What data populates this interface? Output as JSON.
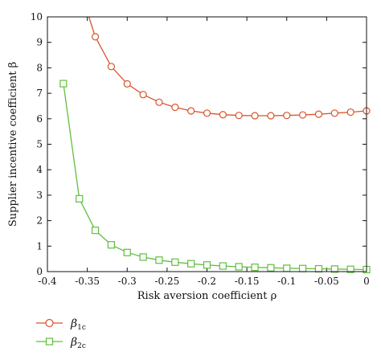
{
  "chart_data": {
    "type": "line",
    "xlabel": "Risk aversion coefficient ρ",
    "ylabel": "Supplier incentive coefficient β",
    "xlim": [
      -0.4,
      0
    ],
    "ylim": [
      0,
      10
    ],
    "x_ticks": [
      -0.4,
      -0.35,
      -0.3,
      -0.25,
      -0.2,
      -0.15,
      -0.1,
      -0.05,
      0
    ],
    "x_tick_labels": [
      "-0.4",
      "-0.35",
      "-0.3",
      "-0.25",
      "-0.2",
      "-0.15",
      "-0.1",
      "-0.05",
      "0"
    ],
    "y_ticks": [
      0,
      1,
      2,
      3,
      4,
      5,
      6,
      7,
      8,
      9,
      10
    ],
    "y_tick_labels": [
      "0",
      "1",
      "2",
      "3",
      "4",
      "5",
      "6",
      "7",
      "8",
      "9",
      "10"
    ],
    "legend_position": "below-left",
    "series": [
      {
        "name": "β1c",
        "legend_main": "β",
        "legend_sub": "1c",
        "color": "#d9532b",
        "marker": "circle",
        "x": [
          -0.34,
          -0.32,
          -0.3,
          -0.28,
          -0.26,
          -0.24,
          -0.22,
          -0.2,
          -0.18,
          -0.16,
          -0.14,
          -0.12,
          -0.1,
          -0.08,
          -0.06,
          -0.04,
          -0.02,
          0.0
        ],
        "y": [
          9.22,
          8.05,
          7.37,
          6.95,
          6.65,
          6.45,
          6.31,
          6.22,
          6.16,
          6.13,
          6.12,
          6.12,
          6.13,
          6.15,
          6.18,
          6.22,
          6.26,
          6.31
        ],
        "curve_start": [
          -0.348,
          10
        ]
      },
      {
        "name": "β2c",
        "legend_main": "β",
        "legend_sub": "2c",
        "color": "#5fbf3f",
        "marker": "square",
        "x": [
          -0.38,
          -0.36,
          -0.34,
          -0.32,
          -0.3,
          -0.28,
          -0.26,
          -0.24,
          -0.22,
          -0.2,
          -0.18,
          -0.16,
          -0.14,
          -0.12,
          -0.1,
          -0.08,
          -0.06,
          -0.04,
          -0.02,
          0.0
        ],
        "y": [
          7.38,
          2.86,
          1.62,
          1.05,
          0.75,
          0.57,
          0.45,
          0.37,
          0.31,
          0.26,
          0.22,
          0.19,
          0.17,
          0.15,
          0.13,
          0.12,
          0.11,
          0.1,
          0.09,
          0.08
        ]
      }
    ]
  }
}
